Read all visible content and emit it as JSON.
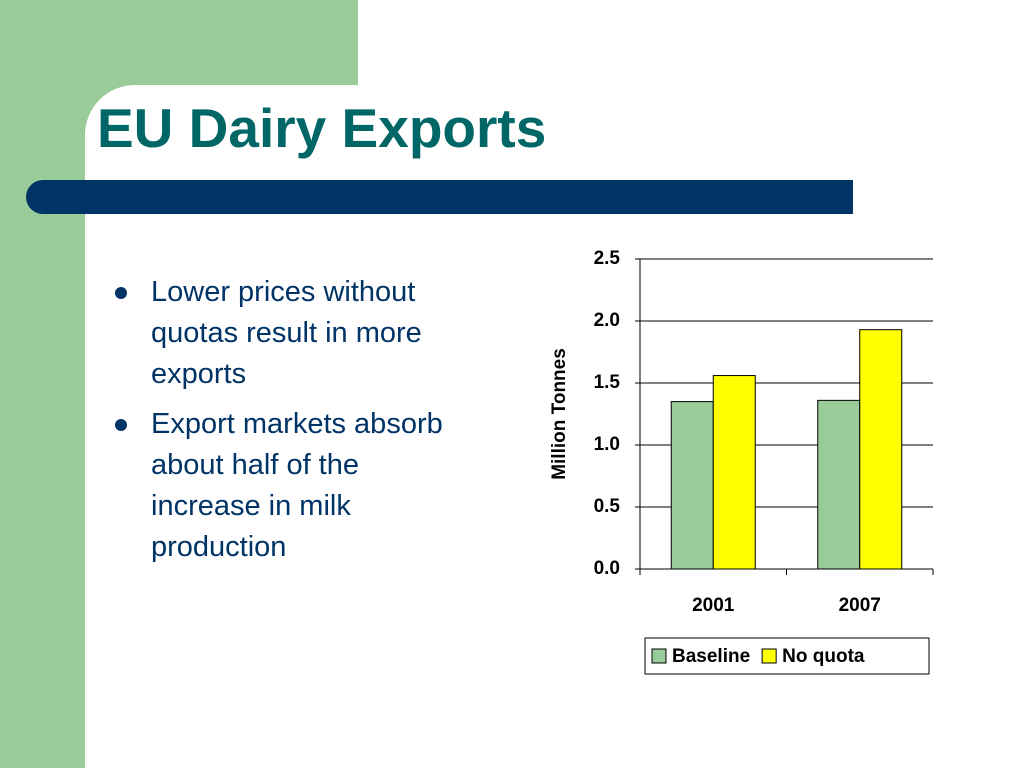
{
  "title": "EU Dairy Exports",
  "bullets": [
    "Lower prices without quotas result in more exports",
    "Export markets absorb about half of the increase in milk production"
  ],
  "chart_data": {
    "type": "bar",
    "y_label": "Million Tonnes",
    "categories": [
      "2001",
      "2007"
    ],
    "series": [
      {
        "name": "Baseline",
        "color": "#99cc99",
        "values": [
          1.35,
          1.36
        ]
      },
      {
        "name": "No quota",
        "color": "#ffff00",
        "values": [
          1.56,
          1.93
        ]
      }
    ],
    "ylim": [
      0,
      2.5
    ],
    "yticks": [
      {
        "value": 0,
        "label": "0.0"
      },
      0.5,
      {
        "value": 1,
        "label": "1.0"
      },
      1.5,
      {
        "value": 2,
        "label": "2.0"
      },
      2.5
    ],
    "grid": true,
    "legend": "bottom"
  }
}
